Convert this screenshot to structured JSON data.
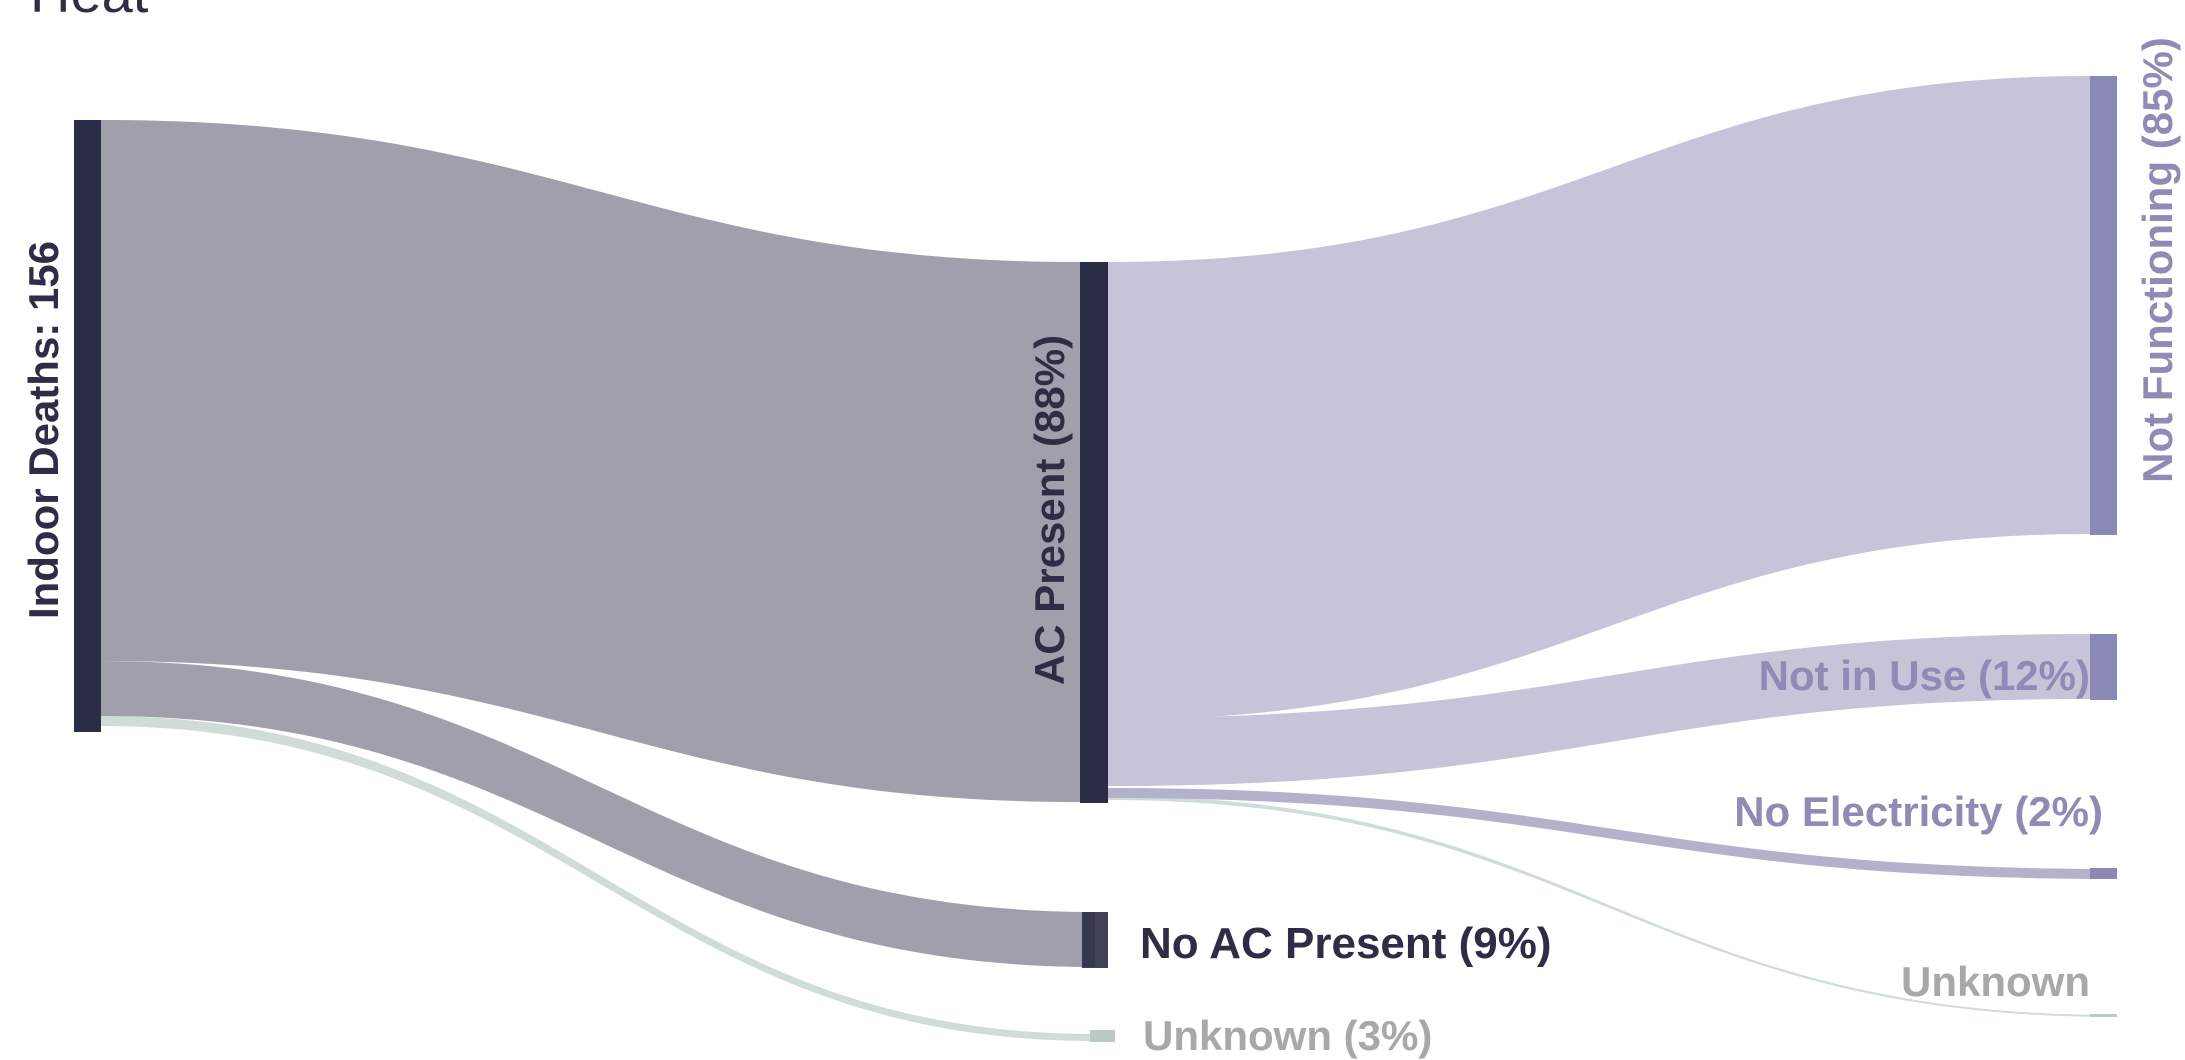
{
  "header": {
    "cropped_title_fragment": "Heat"
  },
  "colors": {
    "node_dark": "#2b2c45",
    "node_lavender": "#8a88b4",
    "node_unknown": "#b9c9c3",
    "flow_gray": "#a19fab",
    "flow_lavender": "#c5c4d9",
    "flow_lavender_mid": "#b3b1cb",
    "flow_unknown": "#cfdcd7",
    "label_dark": "#2e2d45",
    "label_lavender": "#8e8cb5",
    "label_gray": "#a7a8aa"
  },
  "nodes": {
    "root": {
      "label": "Indoor Deaths: 156",
      "value": 156
    },
    "ac_present": {
      "label": "AC Present (88%)",
      "percent": 88
    },
    "no_ac": {
      "label": "No AC Present (9%)",
      "percent": 9
    },
    "unknown_l1": {
      "label": "Unknown (3%)",
      "percent": 3
    },
    "not_functioning": {
      "label": "Not Functioning (85%)",
      "percent": 85
    },
    "not_in_use": {
      "label": "Not in Use (12%)",
      "percent": 12
    },
    "no_electricity": {
      "label": "No Electricity (2%)",
      "percent": 2
    },
    "unknown_l2": {
      "label": "Unknown"
    }
  }
}
